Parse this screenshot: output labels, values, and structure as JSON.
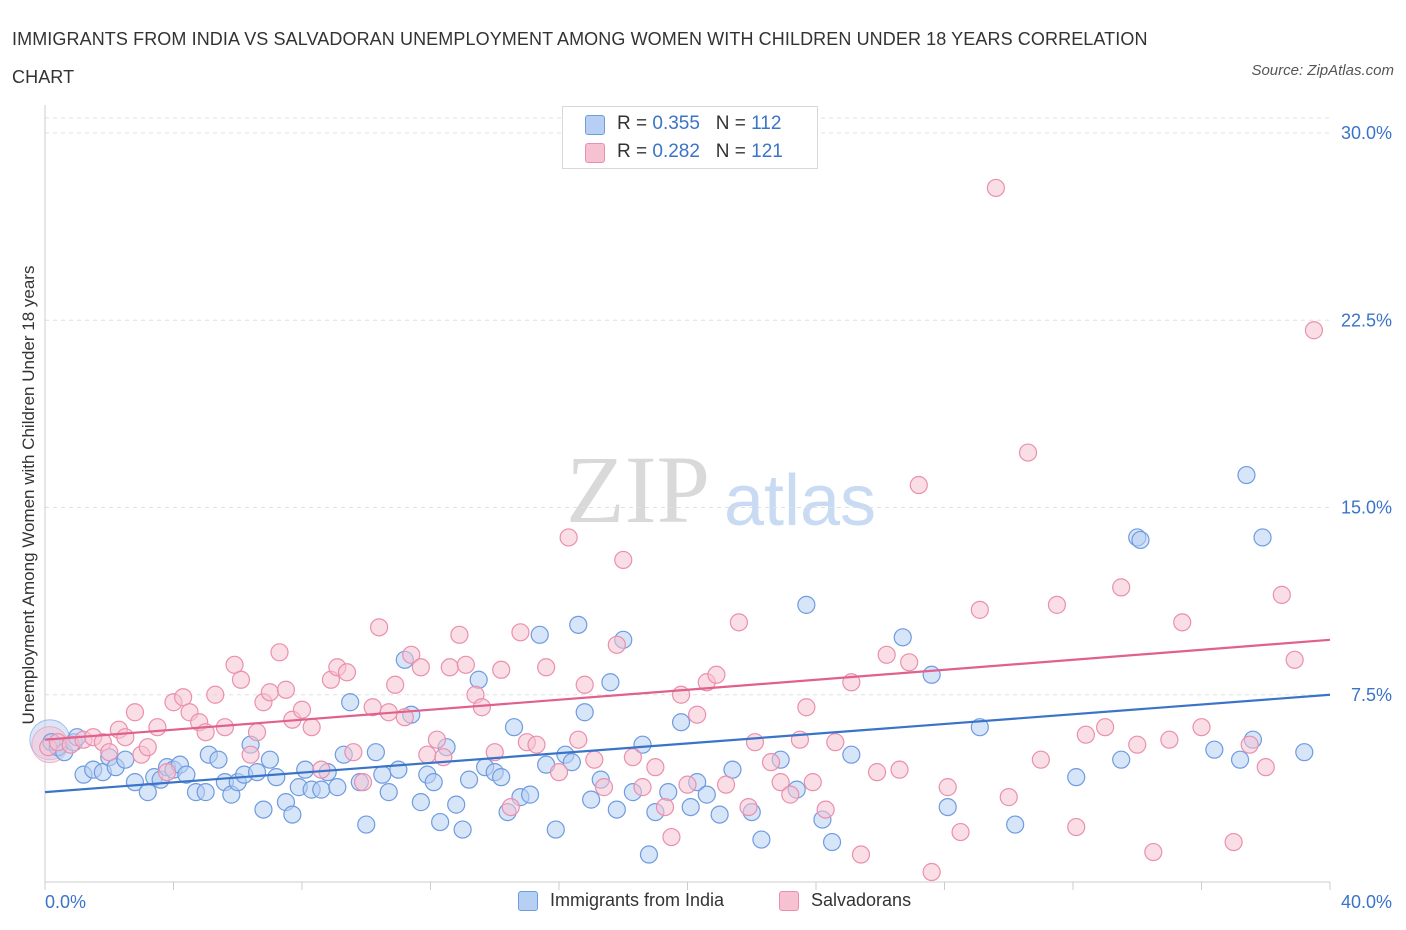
{
  "title": "IMMIGRANTS FROM INDIA VS SALVADORAN UNEMPLOYMENT AMONG WOMEN WITH CHILDREN UNDER 18 YEARS CORRELATION CHART",
  "source": "Source: ZipAtlas.com",
  "watermark": {
    "zip": "ZIP",
    "atlas": "atlas"
  },
  "colors": {
    "blue": "#3a74c9",
    "blue_fill": "#b7cff2",
    "blue_stroke": "#6f9be0",
    "pink": "#e0608e",
    "pink_fill": "#f6c2d2",
    "pink_stroke": "#eb8fae",
    "axis_text": "#3a74c9",
    "grid": "#e0e0e0"
  },
  "legend": {
    "blue": {
      "r_label": "R = ",
      "r_value": "0.355",
      "n_label": "N = ",
      "n_value": "112"
    },
    "pink": {
      "r_label": "R = ",
      "r_value": "0.282",
      "n_label": "N = ",
      "n_value": "121"
    }
  },
  "bottom_legend": [
    "Immigrants from India",
    "Salvadorans"
  ],
  "chart_data": {
    "type": "scatter",
    "title": "IMMIGRANTS FROM INDIA VS SALVADORAN UNEMPLOYMENT AMONG WOMEN WITH CHILDREN UNDER 18 YEARS CORRELATION CHART",
    "xlabel": "",
    "ylabel": "Unemployment Among Women with Children Under 18 years",
    "xlim": [
      0,
      40
    ],
    "ylim": [
      0,
      30
    ],
    "x_ticks": [
      "0.0%",
      "40.0%"
    ],
    "y_ticks": [
      {
        "value": 7.5,
        "label": "7.5%"
      },
      {
        "value": 15,
        "label": "15.0%"
      },
      {
        "value": 22.5,
        "label": "22.5%"
      },
      {
        "value": 30,
        "label": "30.0%"
      }
    ],
    "grid": true,
    "legend_position": "top-center",
    "series": [
      {
        "name": "Immigrants from India",
        "color": "#3a74c9",
        "trend": {
          "x0": 0,
          "y0": 3.6,
          "x1": 40,
          "y1": 7.5
        },
        "points": [
          [
            0.2,
            5.6
          ],
          [
            0.4,
            5.4
          ],
          [
            0.6,
            5.2
          ],
          [
            0.9,
            5.6
          ],
          [
            1.0,
            5.8
          ],
          [
            1.2,
            4.3
          ],
          [
            1.5,
            4.5
          ],
          [
            1.8,
            4.4
          ],
          [
            2.0,
            5.0
          ],
          [
            2.2,
            4.6
          ],
          [
            2.5,
            4.9
          ],
          [
            2.8,
            4.0
          ],
          [
            3.2,
            3.6
          ],
          [
            3.4,
            4.2
          ],
          [
            3.6,
            4.1
          ],
          [
            3.8,
            4.6
          ],
          [
            4.0,
            4.5
          ],
          [
            4.2,
            4.7
          ],
          [
            4.4,
            4.3
          ],
          [
            4.7,
            3.6
          ],
          [
            5.0,
            3.6
          ],
          [
            5.1,
            5.1
          ],
          [
            5.4,
            4.9
          ],
          [
            5.6,
            4.0
          ],
          [
            5.8,
            3.5
          ],
          [
            6.0,
            4.0
          ],
          [
            6.2,
            4.3
          ],
          [
            6.4,
            5.5
          ],
          [
            6.6,
            4.4
          ],
          [
            6.8,
            2.9
          ],
          [
            7.0,
            4.9
          ],
          [
            7.2,
            4.2
          ],
          [
            7.5,
            3.2
          ],
          [
            7.7,
            2.7
          ],
          [
            7.9,
            3.8
          ],
          [
            8.1,
            4.5
          ],
          [
            8.3,
            3.7
          ],
          [
            8.6,
            3.7
          ],
          [
            8.8,
            4.4
          ],
          [
            9.1,
            3.8
          ],
          [
            9.3,
            5.1
          ],
          [
            9.5,
            7.2
          ],
          [
            9.8,
            4.0
          ],
          [
            10.0,
            2.3
          ],
          [
            10.3,
            5.2
          ],
          [
            10.5,
            4.3
          ],
          [
            10.7,
            3.6
          ],
          [
            11.0,
            4.5
          ],
          [
            11.2,
            8.9
          ],
          [
            11.4,
            6.7
          ],
          [
            11.7,
            3.2
          ],
          [
            11.9,
            4.3
          ],
          [
            12.1,
            4.0
          ],
          [
            12.3,
            2.4
          ],
          [
            12.5,
            5.4
          ],
          [
            12.8,
            3.1
          ],
          [
            13.0,
            2.1
          ],
          [
            13.2,
            4.1
          ],
          [
            13.5,
            8.1
          ],
          [
            13.7,
            4.6
          ],
          [
            14.0,
            4.4
          ],
          [
            14.2,
            4.2
          ],
          [
            14.4,
            2.8
          ],
          [
            14.6,
            6.2
          ],
          [
            14.8,
            3.4
          ],
          [
            15.1,
            3.5
          ],
          [
            15.4,
            9.9
          ],
          [
            15.6,
            4.7
          ],
          [
            15.9,
            2.1
          ],
          [
            16.2,
            5.1
          ],
          [
            16.4,
            4.8
          ],
          [
            16.6,
            10.3
          ],
          [
            16.8,
            6.8
          ],
          [
            17.0,
            3.3
          ],
          [
            17.3,
            4.1
          ],
          [
            17.6,
            8.0
          ],
          [
            17.8,
            2.9
          ],
          [
            18.0,
            9.7
          ],
          [
            18.3,
            3.6
          ],
          [
            18.6,
            5.5
          ],
          [
            18.8,
            1.1
          ],
          [
            19.0,
            2.8
          ],
          [
            19.4,
            3.6
          ],
          [
            19.8,
            6.4
          ],
          [
            20.1,
            3.0
          ],
          [
            20.3,
            4.0
          ],
          [
            20.6,
            3.5
          ],
          [
            21.0,
            2.7
          ],
          [
            21.4,
            4.5
          ],
          [
            22.0,
            2.8
          ],
          [
            22.3,
            1.7
          ],
          [
            22.9,
            4.9
          ],
          [
            23.4,
            3.7
          ],
          [
            23.7,
            11.1
          ],
          [
            24.2,
            2.5
          ],
          [
            24.5,
            1.6
          ],
          [
            25.1,
            5.1
          ],
          [
            26.7,
            9.8
          ],
          [
            27.6,
            8.3
          ],
          [
            28.1,
            3.0
          ],
          [
            29.1,
            6.2
          ],
          [
            30.2,
            2.3
          ],
          [
            32.1,
            4.2
          ],
          [
            33.5,
            4.9
          ],
          [
            34.0,
            13.8
          ],
          [
            34.1,
            13.7
          ],
          [
            36.4,
            5.3
          ],
          [
            37.2,
            4.9
          ],
          [
            37.4,
            16.3
          ],
          [
            37.6,
            5.7
          ],
          [
            37.9,
            13.8
          ],
          [
            39.2,
            5.2
          ]
        ]
      },
      {
        "name": "Salvadorans",
        "color": "#e0608e",
        "trend": {
          "x0": 0,
          "y0": 5.7,
          "x1": 40,
          "y1": 9.7
        },
        "points": [
          [
            0.1,
            5.4
          ],
          [
            0.4,
            5.6
          ],
          [
            0.8,
            5.5
          ],
          [
            1.2,
            5.7
          ],
          [
            1.5,
            5.8
          ],
          [
            1.8,
            5.6
          ],
          [
            2.0,
            5.2
          ],
          [
            2.3,
            6.1
          ],
          [
            2.5,
            5.8
          ],
          [
            2.8,
            6.8
          ],
          [
            3.0,
            5.1
          ],
          [
            3.2,
            5.4
          ],
          [
            3.5,
            6.2
          ],
          [
            3.8,
            4.4
          ],
          [
            4.0,
            7.2
          ],
          [
            4.3,
            7.4
          ],
          [
            4.5,
            6.8
          ],
          [
            4.8,
            6.4
          ],
          [
            5.0,
            6.0
          ],
          [
            5.3,
            7.5
          ],
          [
            5.6,
            6.2
          ],
          [
            5.9,
            8.7
          ],
          [
            6.1,
            8.1
          ],
          [
            6.4,
            5.1
          ],
          [
            6.6,
            6.0
          ],
          [
            6.8,
            7.2
          ],
          [
            7.0,
            7.6
          ],
          [
            7.3,
            9.2
          ],
          [
            7.5,
            7.7
          ],
          [
            7.7,
            6.5
          ],
          [
            8.0,
            6.9
          ],
          [
            8.3,
            6.2
          ],
          [
            8.6,
            4.5
          ],
          [
            8.9,
            8.1
          ],
          [
            9.1,
            8.6
          ],
          [
            9.4,
            8.4
          ],
          [
            9.6,
            5.2
          ],
          [
            9.9,
            4.0
          ],
          [
            10.2,
            7.0
          ],
          [
            10.4,
            10.2
          ],
          [
            10.7,
            6.8
          ],
          [
            10.9,
            7.9
          ],
          [
            11.2,
            6.6
          ],
          [
            11.4,
            9.1
          ],
          [
            11.7,
            8.6
          ],
          [
            11.9,
            5.1
          ],
          [
            12.2,
            5.7
          ],
          [
            12.4,
            5.0
          ],
          [
            12.6,
            8.6
          ],
          [
            12.9,
            9.9
          ],
          [
            13.1,
            8.7
          ],
          [
            13.4,
            7.5
          ],
          [
            13.6,
            7.0
          ],
          [
            14.0,
            5.2
          ],
          [
            14.2,
            8.5
          ],
          [
            14.5,
            3.0
          ],
          [
            14.8,
            10.0
          ],
          [
            15.0,
            5.6
          ],
          [
            15.3,
            5.5
          ],
          [
            15.6,
            8.6
          ],
          [
            16.0,
            4.4
          ],
          [
            16.3,
            13.8
          ],
          [
            16.6,
            5.7
          ],
          [
            16.8,
            7.9
          ],
          [
            17.1,
            4.9
          ],
          [
            17.4,
            3.8
          ],
          [
            17.8,
            9.5
          ],
          [
            18.0,
            12.9
          ],
          [
            18.3,
            5.0
          ],
          [
            18.6,
            3.8
          ],
          [
            19.0,
            4.6
          ],
          [
            19.3,
            3.0
          ],
          [
            19.5,
            1.8
          ],
          [
            19.8,
            7.5
          ],
          [
            20.0,
            3.9
          ],
          [
            20.3,
            6.7
          ],
          [
            20.6,
            8.0
          ],
          [
            20.9,
            8.3
          ],
          [
            21.2,
            3.9
          ],
          [
            21.6,
            10.4
          ],
          [
            21.9,
            3.0
          ],
          [
            22.1,
            5.6
          ],
          [
            22.6,
            4.8
          ],
          [
            22.9,
            4.0
          ],
          [
            23.2,
            3.5
          ],
          [
            23.5,
            5.7
          ],
          [
            23.7,
            7.0
          ],
          [
            23.9,
            4.0
          ],
          [
            24.3,
            2.9
          ],
          [
            24.6,
            5.6
          ],
          [
            25.1,
            8.0
          ],
          [
            25.4,
            1.1
          ],
          [
            25.9,
            4.4
          ],
          [
            26.2,
            9.1
          ],
          [
            26.6,
            4.5
          ],
          [
            26.9,
            8.8
          ],
          [
            27.2,
            15.9
          ],
          [
            27.6,
            0.4
          ],
          [
            28.1,
            3.8
          ],
          [
            28.5,
            2.0
          ],
          [
            29.1,
            10.9
          ],
          [
            29.6,
            27.8
          ],
          [
            30.0,
            3.4
          ],
          [
            30.6,
            17.2
          ],
          [
            31.0,
            4.9
          ],
          [
            31.5,
            11.1
          ],
          [
            32.1,
            2.2
          ],
          [
            32.4,
            5.9
          ],
          [
            33.0,
            6.2
          ],
          [
            33.5,
            11.8
          ],
          [
            34.0,
            5.5
          ],
          [
            34.5,
            1.2
          ],
          [
            35.0,
            5.7
          ],
          [
            35.4,
            10.4
          ],
          [
            36.0,
            6.2
          ],
          [
            37.0,
            1.6
          ],
          [
            37.5,
            5.5
          ],
          [
            38.0,
            4.6
          ],
          [
            38.5,
            11.5
          ],
          [
            38.9,
            8.9
          ],
          [
            39.5,
            22.1
          ]
        ]
      }
    ]
  }
}
